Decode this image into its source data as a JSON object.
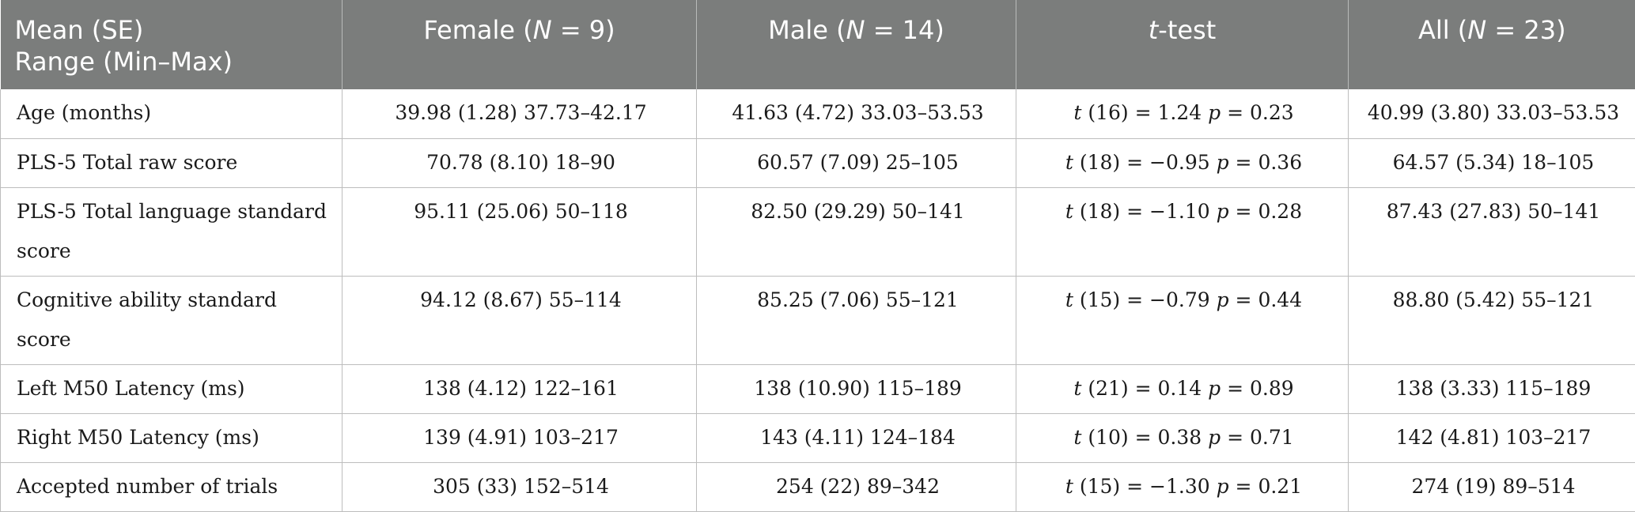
{
  "header": {
    "col0_line1": "Mean (SE)",
    "col0_line2": "Range (Min–Max)",
    "female_prefix": "Female (",
    "female_n_label": "N",
    "female_suffix": " = 9)",
    "male_prefix": "Male (",
    "male_n_label": "N",
    "male_suffix": " = 14)",
    "ttest_t": "t",
    "ttest_rest": "-test",
    "all_prefix": "All (",
    "all_n_label": "N",
    "all_suffix": " = 23)"
  },
  "rows": [
    {
      "label": "Age (months)",
      "female": "39.98 (1.28) 37.73–42.17",
      "male": "41.63 (4.72) 33.03–53.53",
      "t_stat": " (16) = 1.24 ",
      "p_val": " = 0.23",
      "all": "40.99 (3.80) 33.03–53.53"
    },
    {
      "label": "PLS-5 Total raw score",
      "female": "70.78 (8.10) 18–90",
      "male": "60.57 (7.09) 25–105",
      "t_stat": " (18) = −0.95 ",
      "p_val": " = 0.36",
      "all": "64.57 (5.34) 18–105"
    },
    {
      "label": "PLS-5 Total language standard score",
      "female": "95.11 (25.06) 50–118",
      "male": "82.50 (29.29) 50–141",
      "t_stat": " (18) = −1.10 ",
      "p_val": " = 0.28",
      "all": "87.43 (27.83) 50–141"
    },
    {
      "label": "Cognitive ability standard score",
      "female": "94.12 (8.67) 55–114",
      "male": "85.25 (7.06) 55–121",
      "t_stat": " (15) = −0.79 ",
      "p_val": " = 0.44",
      "all": "88.80 (5.42) 55–121"
    },
    {
      "label": "Left M50 Latency (ms)",
      "female": "138 (4.12) 122–161",
      "male": "138 (10.90) 115–189",
      "t_stat": " (21) = 0.14 ",
      "p_val": " = 0.89",
      "all": "138 (3.33) 115–189"
    },
    {
      "label": "Right M50 Latency (ms)",
      "female": "139 (4.91) 103–217",
      "male": "143 (4.11) 124–184",
      "t_stat": " (10) = 0.38 ",
      "p_val": " = 0.71",
      "all": "142 (4.81) 103–217"
    },
    {
      "label": "Accepted number of trials",
      "female": "305 (33) 152–514",
      "male": "254 (22) 89–342",
      "t_stat": " (15) = −1.30 ",
      "p_val": " = 0.21",
      "all": "274 (19) 89–514"
    }
  ],
  "symbols": {
    "t": "t",
    "p": "p"
  }
}
